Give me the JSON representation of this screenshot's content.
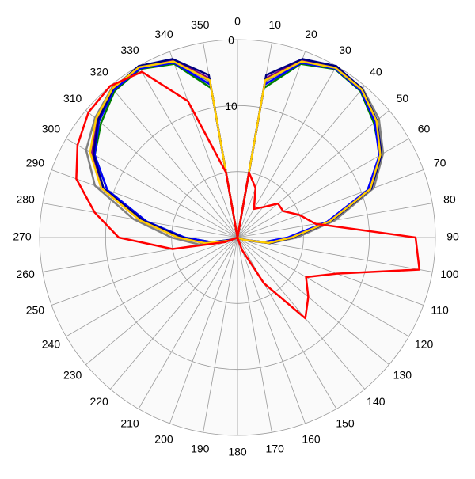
{
  "chart_data": {
    "type": "polar",
    "theta": [
      0,
      10,
      20,
      30,
      40,
      50,
      60,
      70,
      80,
      90,
      100,
      110,
      120,
      130,
      140,
      150,
      160,
      170,
      180,
      190,
      200,
      210,
      220,
      230,
      240,
      250,
      260,
      270,
      280,
      290,
      300,
      310,
      320,
      330,
      340,
      350
    ],
    "thetaticks": [
      0,
      10,
      20,
      30,
      40,
      50,
      60,
      70,
      80,
      90,
      100,
      110,
      120,
      130,
      140,
      150,
      160,
      170,
      180,
      190,
      200,
      210,
      220,
      230,
      240,
      250,
      260,
      270,
      280,
      290,
      300,
      310,
      320,
      330,
      340,
      350
    ],
    "rlim": [
      30,
      0
    ],
    "rticks": [
      0,
      10
    ],
    "rgrid": [
      20
    ],
    "series": [
      {
        "color": "#808080",
        "values": [
          30,
          6,
          1.5,
          0.2,
          0.5,
          2,
          4.5,
          8,
          15,
          21,
          25,
          29,
          30,
          30,
          30,
          30,
          30,
          30,
          30,
          30,
          30,
          30,
          30,
          30,
          30,
          28,
          24,
          20,
          14,
          7,
          3.5,
          1.8,
          0.4,
          0.3,
          1.5,
          6
        ]
      },
      {
        "color": "#008000",
        "values": [
          30,
          7,
          2,
          0.5,
          1,
          3,
          5,
          9,
          16,
          22,
          26,
          29,
          30,
          30,
          30,
          30,
          30,
          30,
          30,
          30,
          30,
          30,
          30,
          30,
          30,
          29,
          26,
          22,
          16,
          9,
          5,
          3,
          1,
          0.5,
          2,
          7
        ]
      },
      {
        "color": "#800080",
        "values": [
          30,
          5.5,
          1.4,
          0.2,
          0.8,
          2.6,
          5,
          8.8,
          16,
          22,
          25.5,
          29,
          30,
          30,
          30,
          30,
          30,
          30,
          30,
          30,
          30,
          30,
          30,
          30,
          30,
          28.5,
          25,
          21,
          15,
          8,
          4.5,
          2.2,
          0.5,
          0.2,
          1.4,
          5.5
        ]
      },
      {
        "color": "#0000ff",
        "values": [
          30,
          6.5,
          1.8,
          0.4,
          0.9,
          2.8,
          5.2,
          9,
          16.2,
          22.4,
          26,
          29,
          30,
          30,
          30,
          30,
          30,
          30,
          30,
          30,
          30,
          30,
          30,
          30,
          30,
          29,
          26,
          22,
          16,
          9,
          5,
          2.6,
          0.8,
          0.4,
          1.8,
          6.5
        ]
      },
      {
        "color": "#000080",
        "values": [
          30,
          5,
          1.2,
          0,
          0.6,
          2.4,
          4.8,
          8.4,
          15.6,
          21.6,
          25,
          28.8,
          30,
          30,
          30,
          30,
          30,
          30,
          30,
          30,
          30,
          30,
          30,
          30,
          30,
          28.8,
          25,
          21.6,
          15.6,
          8.4,
          4.8,
          2.4,
          0.6,
          0,
          1.2,
          5
        ]
      },
      {
        "color": "#ffcc00",
        "values": [
          30,
          5.8,
          1.6,
          0.3,
          0.7,
          2.5,
          5,
          8.6,
          15.8,
          21.8,
          25.2,
          29,
          30,
          30,
          30,
          30,
          30,
          30,
          30,
          30,
          30,
          30,
          30,
          30,
          30,
          28.6,
          25,
          21,
          15,
          8,
          4.2,
          2,
          0.5,
          0.2,
          1.6,
          5.8
        ]
      },
      {
        "color": "#ff0000",
        "values": [
          30,
          20,
          22,
          25,
          24,
          22,
          22,
          20,
          18,
          3,
          2,
          14,
          18,
          16,
          14,
          22,
          28,
          30,
          30,
          30,
          30,
          30,
          30,
          30,
          30,
          28,
          20,
          12,
          8,
          4,
          2,
          0.5,
          0,
          1,
          8,
          20
        ]
      }
    ]
  }
}
